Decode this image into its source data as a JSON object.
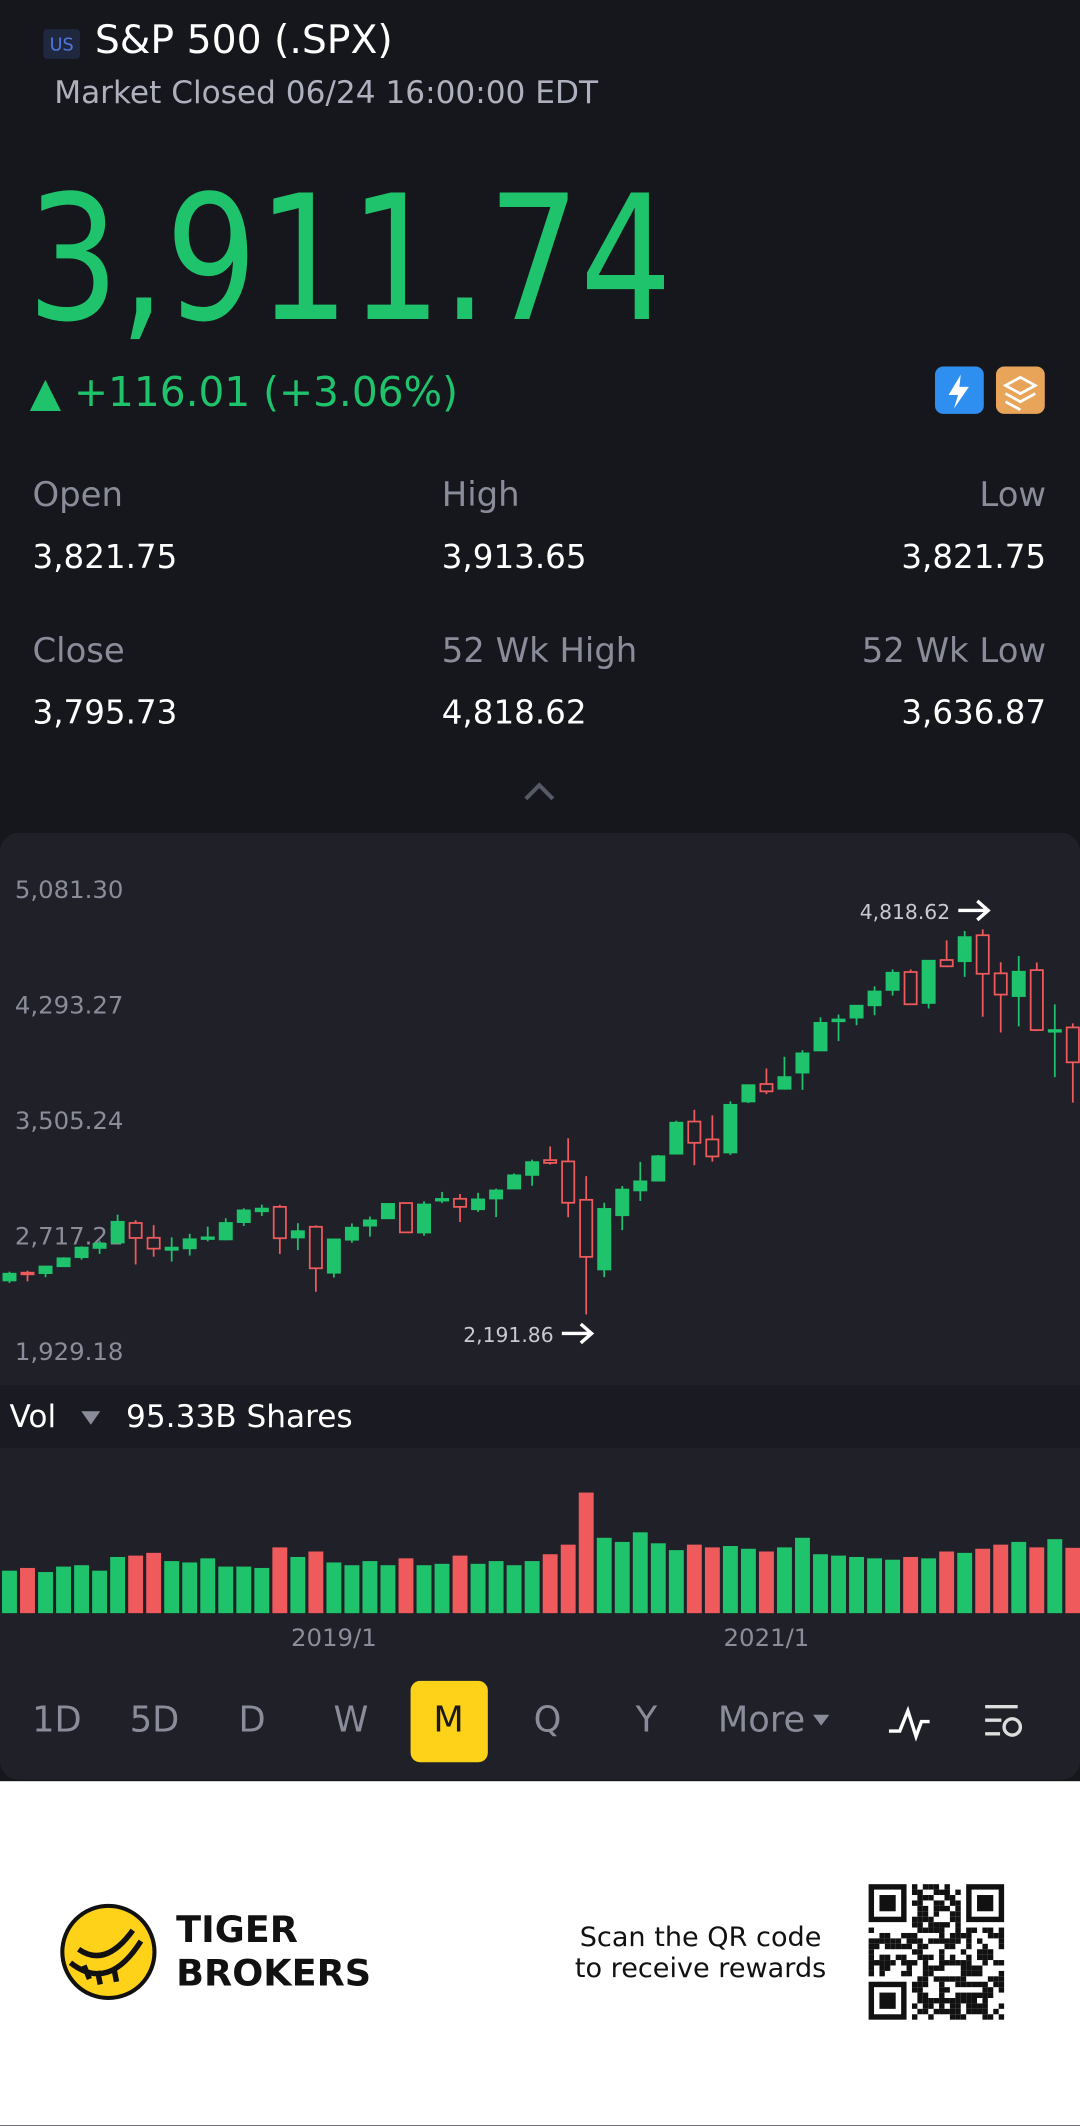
{
  "header": {
    "badge": "US",
    "title": "S&P 500 (.SPX)",
    "status": "Market Closed 06/24 16:00:00 EDT",
    "price": "3,911.74",
    "change": "▲ +116.01 (+3.06%)"
  },
  "stats": [
    {
      "label": "Open",
      "value": "3,821.75"
    },
    {
      "label": "High",
      "value": "3,913.65"
    },
    {
      "label": "Low",
      "value": "3,821.75"
    },
    {
      "label": "Close",
      "value": "3,795.73"
    },
    {
      "label": "52 Wk High",
      "value": "4,818.62"
    },
    {
      "label": "52 Wk Low",
      "value": "3,636.87"
    }
  ],
  "chart_data": {
    "type": "candlestick",
    "categories": [
      null,
      null,
      null,
      null,
      null,
      null,
      null,
      null,
      null,
      null,
      null,
      null,
      null,
      null,
      null,
      null,
      null,
      null,
      "2019/1",
      null,
      null,
      null,
      null,
      null,
      null,
      null,
      null,
      null,
      null,
      null,
      null,
      null,
      null,
      null,
      null,
      null,
      null,
      null,
      null,
      null,
      null,
      null,
      "2021/1",
      null,
      null,
      null,
      null,
      null,
      null,
      null,
      null,
      null,
      null,
      null,
      null,
      null,
      null,
      null,
      null,
      null
    ],
    "open": [
      2424,
      2477,
      2474,
      2521,
      2583,
      2646,
      2683,
      2816,
      2715,
      2633,
      2643,
      2718,
      2704,
      2822,
      2896,
      2926,
      2717,
      2790,
      2477,
      2702,
      2798,
      2848,
      2952,
      2751,
      2971,
      2981,
      2910,
      2983,
      3051,
      3144,
      3245,
      3236,
      2974,
      2499,
      2869,
      3038,
      3105,
      3289,
      3508,
      3386,
      3297,
      3645,
      3764,
      3732,
      3842,
      3993,
      4192,
      4217,
      4301,
      4406,
      4528,
      4317,
      4610,
      4602,
      4779,
      4519,
      4364,
      4541,
      4131,
      4150
    ],
    "high": [
      2484,
      2491,
      2520,
      2582,
      2657,
      2695,
      2873,
      2835,
      2801,
      2718,
      2742,
      2791,
      2848,
      2916,
      2941,
      2940,
      2815,
      2800,
      2708,
      2813,
      2860,
      2950,
      2954,
      2964,
      3028,
      3014,
      3022,
      3050,
      3154,
      3248,
      3338,
      3394,
      3136,
      2954,
      3068,
      3233,
      3280,
      3514,
      3588,
      3550,
      3646,
      3760,
      3870,
      3950,
      3995,
      4219,
      4238,
      4302,
      4430,
      4546,
      4546,
      4608,
      4744,
      4808,
      4818.62,
      4595,
      4637,
      4593,
      4307,
      4178
    ],
    "low": [
      2407,
      2418,
      2446,
      2520,
      2566,
      2605,
      2683,
      2533,
      2586,
      2553,
      2594,
      2691,
      2698,
      2796,
      2864,
      2604,
      2631,
      2347,
      2444,
      2681,
      2723,
      2848,
      2751,
      2729,
      2952,
      2822,
      2892,
      2856,
      3051,
      3070,
      3214,
      2855,
      2191.86,
      2447,
      2767,
      2966,
      3102,
      3284,
      3210,
      3234,
      3280,
      3634,
      3695,
      3725,
      3724,
      3992,
      4057,
      4165,
      4233,
      4367,
      4306,
      4279,
      4561,
      4495,
      4223,
      4115,
      4157,
      4125,
      3811,
      3637
    ],
    "close": [
      2470,
      2472,
      2519,
      2575,
      2648,
      2674,
      2824,
      2714,
      2641,
      2648,
      2705,
      2718,
      2816,
      2902,
      2914,
      2712,
      2760,
      2507,
      2704,
      2784,
      2834,
      2946,
      2752,
      2942,
      2980,
      2926,
      2977,
      3038,
      3141,
      3231,
      3226,
      2954,
      2585,
      2912,
      3044,
      3100,
      3271,
      3500,
      3363,
      3270,
      3622,
      3756,
      3714,
      3811,
      3973,
      4181,
      4204,
      4298,
      4395,
      4523,
      4308,
      4605,
      4567,
      4766,
      4516,
      4374,
      4530,
      4132,
      4132,
      3912
    ],
    "ylim": [
      1929.18,
      5081.3
    ],
    "yticks": [
      {
        "value": 5081.3,
        "label": "5,081.30"
      },
      {
        "value": 4293.27,
        "label": "4,293.27"
      },
      {
        "value": 3505.24,
        "label": "3,505.24"
      },
      {
        "value": 2717.21,
        "label": "2,717.21"
      },
      {
        "value": 1929.18,
        "label": "1,929.18"
      }
    ],
    "up_color": "#1fc36c",
    "down_color": "#ef5a5c",
    "annotations": [
      {
        "value": 4818.62,
        "label": "4,818.62"
      },
      {
        "value": 2191.86,
        "label": "2,191.86"
      }
    ],
    "volume": {
      "label": "Vol",
      "text": "95.33B Shares",
      "values": [
        62,
        66,
        60,
        68,
        70,
        62,
        82,
        84,
        88,
        76,
        74,
        80,
        68,
        68,
        66,
        96,
        82,
        90,
        74,
        70,
        76,
        70,
        80,
        70,
        72,
        84,
        72,
        76,
        70,
        76,
        86,
        100,
        176,
        110,
        104,
        118,
        102,
        92,
        100,
        96,
        98,
        94,
        90,
        96,
        110,
        86,
        84,
        82,
        80,
        78,
        82,
        80,
        90,
        88,
        94,
        100,
        104,
        96,
        108,
        95.33
      ]
    }
  },
  "tabs": [
    "1D",
    "5D",
    "D",
    "W",
    "M",
    "Q",
    "Y",
    "More"
  ],
  "active_tab": "M",
  "footer": {
    "brand": [
      "TIGER",
      "BROKERS"
    ],
    "qr_text": [
      "Scan the QR code",
      "to receive rewards"
    ]
  }
}
